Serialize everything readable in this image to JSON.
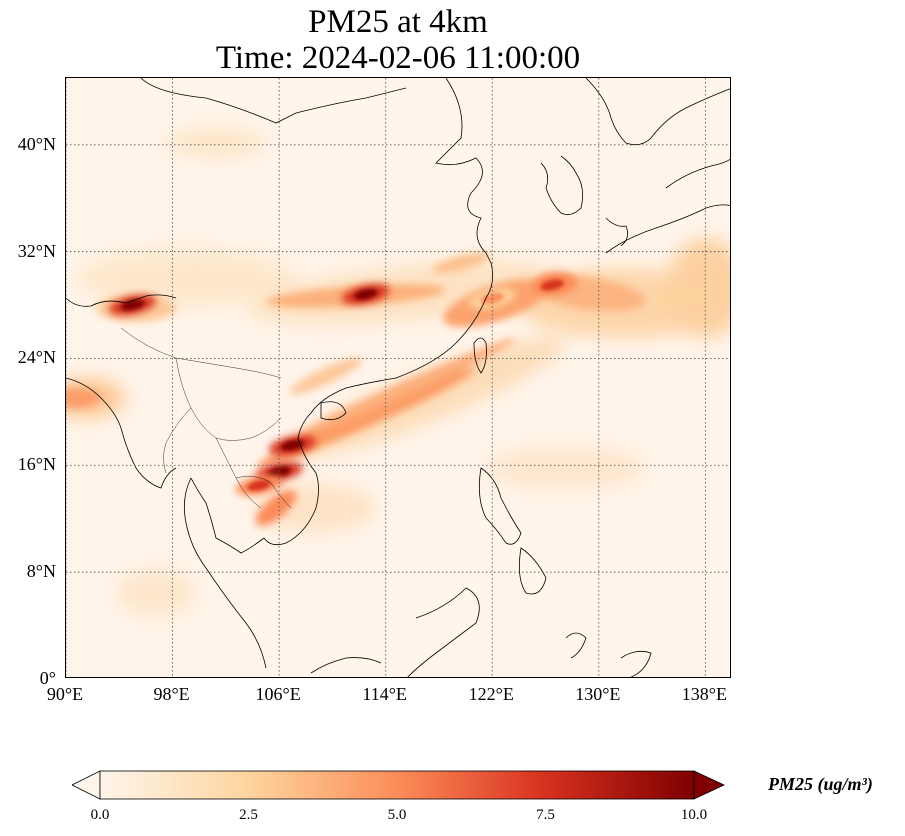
{
  "title": {
    "line1": "PM25 at 4km",
    "line2": "Time: 2024-02-06 11:00:00"
  },
  "map": {
    "lon_range": [
      90,
      140
    ],
    "lat_range": [
      0,
      45
    ],
    "lat_ticks": [
      "40°N",
      "32°N",
      "24°N",
      "16°N",
      "8°N",
      "0°"
    ],
    "lon_ticks": [
      "90°E",
      "98°E",
      "106°E",
      "114°E",
      "122°E",
      "130°E",
      "138°E"
    ],
    "gridlines": true,
    "colormap": "OrRd",
    "plume_hotspots": [
      {
        "region": "Central China",
        "lon": 112.5,
        "lat": 28.8,
        "value": 10.0
      },
      {
        "region": "NE India / Bhutan",
        "lon": 95.0,
        "lat": 28.0,
        "value": 10.0
      },
      {
        "region": "Laos / Vietnam",
        "lon": 107.0,
        "lat": 17.5,
        "value": 9.5
      },
      {
        "region": "Laos",
        "lon": 106.0,
        "lat": 15.5,
        "value": 10.0
      },
      {
        "region": "Cambodia",
        "lon": 104.5,
        "lat": 14.5,
        "value": 7.5
      },
      {
        "region": "East China Sea",
        "lon": 122.0,
        "lat": 28.5,
        "value": 5.0
      },
      {
        "region": "South of Korea",
        "lon": 126.5,
        "lat": 29.5,
        "value": 6.5
      },
      {
        "region": "Western Pacific",
        "lon": 136.0,
        "lat": 28.5,
        "value": 3.5
      }
    ]
  },
  "colorbar": {
    "ticks": [
      "0.0",
      "2.5",
      "5.0",
      "7.5",
      "10.0"
    ],
    "min": 0.0,
    "max": 10.0,
    "extend": "both",
    "label": "PM25 (ug/m³)",
    "colors": [
      "#fff5eb",
      "#fdd49e",
      "#fc8d59",
      "#d7301f",
      "#7f0000"
    ]
  }
}
